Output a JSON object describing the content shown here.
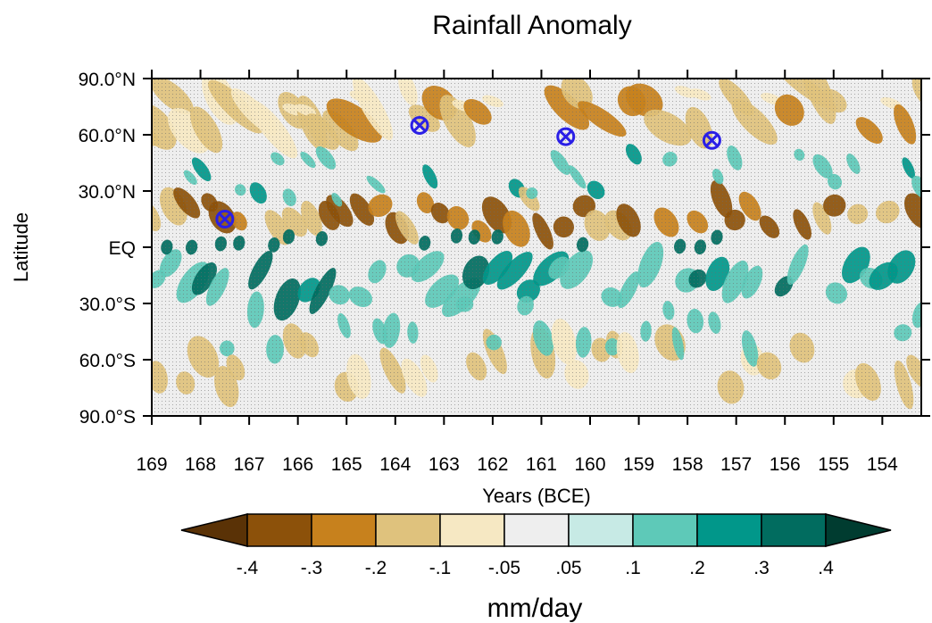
{
  "chart_data": {
    "type": "heatmap",
    "title": "Rainfall Anomaly",
    "xlabel": "Years (BCE)",
    "ylabel": "Latitude",
    "x_range": [
      169,
      153.2
    ],
    "x_ticks": [
      169,
      168,
      167,
      166,
      165,
      164,
      163,
      162,
      161,
      160,
      159,
      158,
      157,
      156,
      155,
      154
    ],
    "y_range": [
      -90,
      90
    ],
    "y_ticks": [
      {
        "value": 90,
        "label": "90.0°N"
      },
      {
        "value": 60,
        "label": "60.0°N"
      },
      {
        "value": 30,
        "label": "30.0°N"
      },
      {
        "value": 0,
        "label": "EQ"
      },
      {
        "value": -30,
        "label": "30.0°S"
      },
      {
        "value": -60,
        "label": "60.0°S"
      },
      {
        "value": -90,
        "label": "90.0°S"
      }
    ],
    "stippling": "dots over areas",
    "markers": [
      {
        "x": 167.5,
        "y": 15,
        "symbol": "circled-x",
        "color": "#2a1fe6"
      },
      {
        "x": 163.5,
        "y": 65,
        "symbol": "circled-x",
        "color": "#2a1fe6"
      },
      {
        "x": 160.5,
        "y": 59,
        "symbol": "circled-x",
        "color": "#2a1fe6"
      },
      {
        "x": 157.5,
        "y": 57,
        "symbol": "circled-x",
        "color": "#2a1fe6"
      }
    ],
    "colorbar": {
      "label": "mm/day",
      "tick_labels": [
        "-.4",
        "-.3",
        "-.2",
        "-.1",
        "-.05",
        ".05",
        ".1",
        ".2",
        ".3",
        ".4"
      ],
      "colors": [
        "#5a3206",
        "#8c510a",
        "#c7811d",
        "#dfc27d",
        "#f6e8c3",
        "#eeeeee",
        "#c7eae5",
        "#5ec9b8",
        "#01978a",
        "#016c5f",
        "#003c30"
      ]
    }
  }
}
